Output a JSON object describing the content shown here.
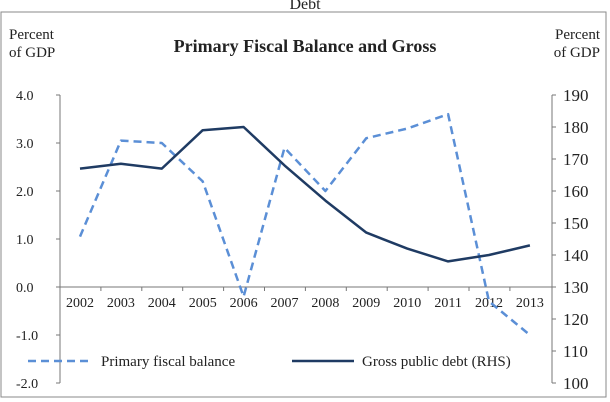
{
  "chart_data": {
    "type": "line",
    "title": "Primary Fiscal Balance and Gross",
    "title_overflow": "Debt",
    "left_unit_line1": "Percent",
    "left_unit_line2": "of GDP",
    "right_unit_line1": "Percent",
    "right_unit_line2": "of GDP",
    "x": [
      "2002",
      "2003",
      "2004",
      "2005",
      "2006",
      "2007",
      "2008",
      "2009",
      "2010",
      "2011",
      "2012",
      "2013"
    ],
    "y_left_ticks": [
      "4.0",
      "3.0",
      "2.0",
      "1.0",
      "0.0",
      "-1.0",
      "-2.0"
    ],
    "y_left_range": [
      -2.0,
      4.0
    ],
    "y_right_ticks": [
      "190",
      "180",
      "170",
      "160",
      "150",
      "140",
      "130",
      "120",
      "110",
      "100"
    ],
    "y_right_range": [
      100,
      190
    ],
    "series": [
      {
        "name": "Primary fiscal balance",
        "axis": "left",
        "style": "dashed",
        "color": "#5b8fd6",
        "values": [
          1.05,
          3.05,
          3.0,
          2.2,
          -0.2,
          2.9,
          2.0,
          3.1,
          3.3,
          3.6,
          -0.3,
          -1.0
        ]
      },
      {
        "name": "Gross public debt (RHS)",
        "axis": "right",
        "style": "solid",
        "color": "#1f3b63",
        "values": [
          167,
          168.5,
          167,
          179,
          180,
          168,
          157,
          147,
          142,
          138,
          140,
          143
        ]
      }
    ],
    "legend_position": "bottom"
  }
}
